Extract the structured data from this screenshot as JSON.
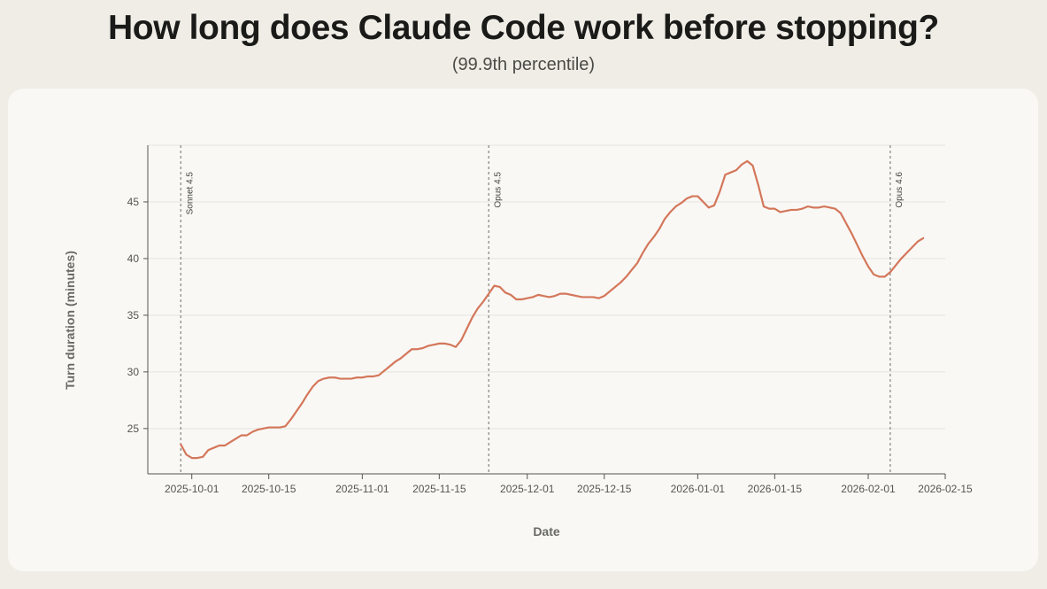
{
  "header": {
    "title": "How long does Claude Code work before stopping?",
    "subtitle": "(99.9th percentile)"
  },
  "chart_data": {
    "type": "line",
    "xlabel": "Date",
    "ylabel": "Turn duration (minutes)",
    "xlim": [
      "2025-09-23",
      "2026-02-15"
    ],
    "ylim": [
      21,
      50
    ],
    "grid": true,
    "x_ticks": [
      "2025-10-01",
      "2025-10-15",
      "2025-11-01",
      "2025-11-15",
      "2025-12-01",
      "2025-12-15",
      "2026-01-01",
      "2026-01-15",
      "2026-02-01",
      "2026-02-15"
    ],
    "y_ticks": [
      25,
      30,
      35,
      40,
      45
    ],
    "colors": {
      "line": "#d4775a",
      "grid": "#e6e4de",
      "axis": "#55554f",
      "annotation": "#8c8c86"
    },
    "annotations": [
      {
        "x": "2025-09-29",
        "label": "Sonnet 4.5"
      },
      {
        "x": "2025-11-24",
        "label": "Opus 4.5"
      },
      {
        "x": "2026-02-05",
        "label": "Opus 4.6"
      }
    ],
    "series": [
      {
        "name": "",
        "points": [
          [
            "2025-09-29",
            23.6
          ],
          [
            "2025-09-30",
            22.7
          ],
          [
            "2025-10-01",
            22.4
          ],
          [
            "2025-10-02",
            22.4
          ],
          [
            "2025-10-03",
            22.5
          ],
          [
            "2025-10-04",
            23.1
          ],
          [
            "2025-10-05",
            23.3
          ],
          [
            "2025-10-06",
            23.5
          ],
          [
            "2025-10-07",
            23.5
          ],
          [
            "2025-10-08",
            23.8
          ],
          [
            "2025-10-09",
            24.1
          ],
          [
            "2025-10-10",
            24.4
          ],
          [
            "2025-10-11",
            24.4
          ],
          [
            "2025-10-12",
            24.7
          ],
          [
            "2025-10-13",
            24.9
          ],
          [
            "2025-10-14",
            25.0
          ],
          [
            "2025-10-15",
            25.1
          ],
          [
            "2025-10-16",
            25.1
          ],
          [
            "2025-10-17",
            25.1
          ],
          [
            "2025-10-18",
            25.2
          ],
          [
            "2025-10-19",
            25.8
          ],
          [
            "2025-10-20",
            26.5
          ],
          [
            "2025-10-21",
            27.2
          ],
          [
            "2025-10-22",
            28.0
          ],
          [
            "2025-10-23",
            28.7
          ],
          [
            "2025-10-24",
            29.2
          ],
          [
            "2025-10-25",
            29.4
          ],
          [
            "2025-10-26",
            29.5
          ],
          [
            "2025-10-27",
            29.5
          ],
          [
            "2025-10-28",
            29.4
          ],
          [
            "2025-10-29",
            29.4
          ],
          [
            "2025-10-30",
            29.4
          ],
          [
            "2025-10-31",
            29.5
          ],
          [
            "2025-11-01",
            29.5
          ],
          [
            "2025-11-02",
            29.6
          ],
          [
            "2025-11-03",
            29.6
          ],
          [
            "2025-11-04",
            29.7
          ],
          [
            "2025-11-05",
            30.1
          ],
          [
            "2025-11-06",
            30.5
          ],
          [
            "2025-11-07",
            30.9
          ],
          [
            "2025-11-08",
            31.2
          ],
          [
            "2025-11-09",
            31.6
          ],
          [
            "2025-11-10",
            32.0
          ],
          [
            "2025-11-11",
            32.0
          ],
          [
            "2025-11-12",
            32.1
          ],
          [
            "2025-11-13",
            32.3
          ],
          [
            "2025-11-14",
            32.4
          ],
          [
            "2025-11-15",
            32.5
          ],
          [
            "2025-11-16",
            32.5
          ],
          [
            "2025-11-17",
            32.4
          ],
          [
            "2025-11-18",
            32.2
          ],
          [
            "2025-11-19",
            32.8
          ],
          [
            "2025-11-20",
            33.8
          ],
          [
            "2025-11-21",
            34.8
          ],
          [
            "2025-11-22",
            35.6
          ],
          [
            "2025-11-23",
            36.2
          ],
          [
            "2025-11-24",
            36.9
          ],
          [
            "2025-11-25",
            37.6
          ],
          [
            "2025-11-26",
            37.5
          ],
          [
            "2025-11-27",
            37.0
          ],
          [
            "2025-11-28",
            36.8
          ],
          [
            "2025-11-29",
            36.4
          ],
          [
            "2025-11-30",
            36.4
          ],
          [
            "2025-12-01",
            36.5
          ],
          [
            "2025-12-02",
            36.6
          ],
          [
            "2025-12-03",
            36.8
          ],
          [
            "2025-12-04",
            36.7
          ],
          [
            "2025-12-05",
            36.6
          ],
          [
            "2025-12-06",
            36.7
          ],
          [
            "2025-12-07",
            36.9
          ],
          [
            "2025-12-08",
            36.9
          ],
          [
            "2025-12-09",
            36.8
          ],
          [
            "2025-12-10",
            36.7
          ],
          [
            "2025-12-11",
            36.6
          ],
          [
            "2025-12-12",
            36.6
          ],
          [
            "2025-12-13",
            36.6
          ],
          [
            "2025-12-14",
            36.5
          ],
          [
            "2025-12-15",
            36.7
          ],
          [
            "2025-12-16",
            37.1
          ],
          [
            "2025-12-17",
            37.5
          ],
          [
            "2025-12-18",
            37.9
          ],
          [
            "2025-12-19",
            38.4
          ],
          [
            "2025-12-20",
            39.0
          ],
          [
            "2025-12-21",
            39.6
          ],
          [
            "2025-12-22",
            40.5
          ],
          [
            "2025-12-23",
            41.3
          ],
          [
            "2025-12-24",
            41.9
          ],
          [
            "2025-12-25",
            42.6
          ],
          [
            "2025-12-26",
            43.5
          ],
          [
            "2025-12-27",
            44.1
          ],
          [
            "2025-12-28",
            44.6
          ],
          [
            "2025-12-29",
            44.9
          ],
          [
            "2025-12-30",
            45.3
          ],
          [
            "2025-12-31",
            45.5
          ],
          [
            "2026-01-01",
            45.5
          ],
          [
            "2026-01-02",
            45.0
          ],
          [
            "2026-01-03",
            44.5
          ],
          [
            "2026-01-04",
            44.7
          ],
          [
            "2026-01-05",
            45.9
          ],
          [
            "2026-01-06",
            47.4
          ],
          [
            "2026-01-07",
            47.6
          ],
          [
            "2026-01-08",
            47.8
          ],
          [
            "2026-01-09",
            48.3
          ],
          [
            "2026-01-10",
            48.6
          ],
          [
            "2026-01-11",
            48.2
          ],
          [
            "2026-01-12",
            46.5
          ],
          [
            "2026-01-13",
            44.6
          ],
          [
            "2026-01-14",
            44.4
          ],
          [
            "2026-01-15",
            44.4
          ],
          [
            "2026-01-16",
            44.1
          ],
          [
            "2026-01-17",
            44.2
          ],
          [
            "2026-01-18",
            44.3
          ],
          [
            "2026-01-19",
            44.3
          ],
          [
            "2026-01-20",
            44.4
          ],
          [
            "2026-01-21",
            44.6
          ],
          [
            "2026-01-22",
            44.5
          ],
          [
            "2026-01-23",
            44.5
          ],
          [
            "2026-01-24",
            44.6
          ],
          [
            "2026-01-25",
            44.5
          ],
          [
            "2026-01-26",
            44.4
          ],
          [
            "2026-01-27",
            44.0
          ],
          [
            "2026-01-28",
            43.1
          ],
          [
            "2026-01-29",
            42.2
          ],
          [
            "2026-01-30",
            41.2
          ],
          [
            "2026-01-31",
            40.2
          ],
          [
            "2026-02-01",
            39.3
          ],
          [
            "2026-02-02",
            38.6
          ],
          [
            "2026-02-03",
            38.4
          ],
          [
            "2026-02-04",
            38.4
          ],
          [
            "2026-02-05",
            38.8
          ],
          [
            "2026-02-06",
            39.4
          ],
          [
            "2026-02-07",
            40.0
          ],
          [
            "2026-02-08",
            40.5
          ],
          [
            "2026-02-09",
            41.0
          ],
          [
            "2026-02-10",
            41.5
          ],
          [
            "2026-02-11",
            41.8
          ]
        ]
      }
    ]
  }
}
